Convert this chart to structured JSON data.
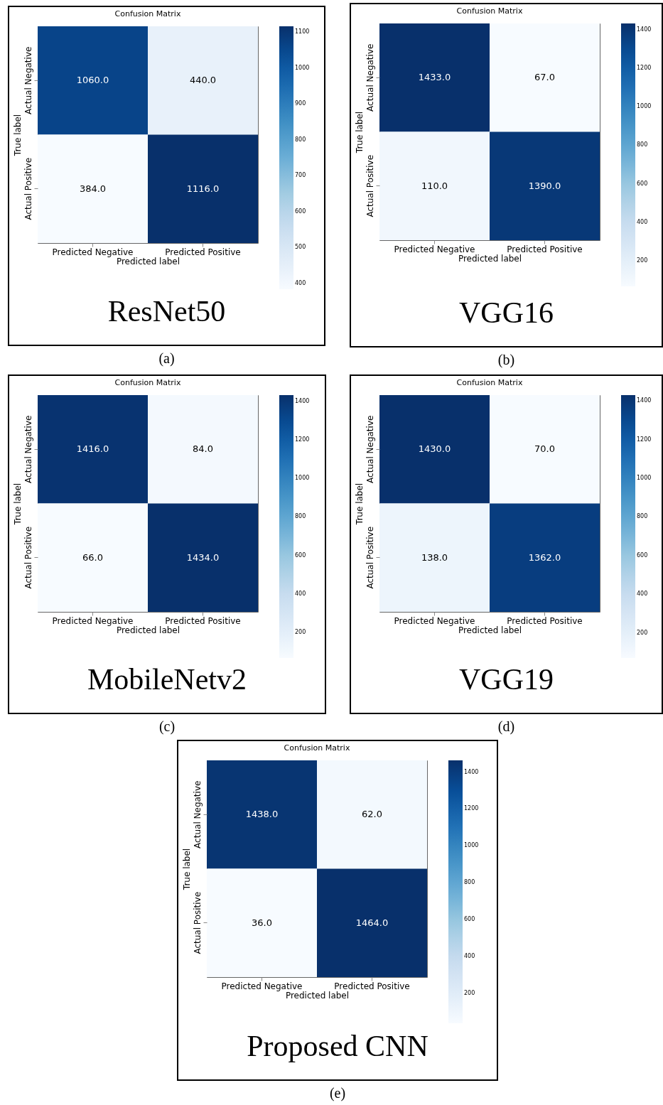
{
  "chart_data": [
    {
      "type": "heatmap",
      "title": "Confusion Matrix",
      "xlabel": "Predicted label",
      "ylabel": "True label",
      "categories": [
        "Predicted Negative",
        "Predicted Positive"
      ],
      "y_categories": [
        "Actual Negative",
        "Actual Positive"
      ],
      "cells": [
        [
          1060,
          440
        ],
        [
          384,
          1116
        ]
      ],
      "cell_labels": [
        [
          "1060.0",
          "440.0"
        ],
        [
          "384.0",
          "1116.0"
        ]
      ],
      "clim": [
        384,
        1116
      ],
      "cticks": [
        400,
        500,
        600,
        700,
        800,
        900,
        1000,
        1100
      ],
      "annotations": [
        "ResNet50",
        "(a)"
      ]
    },
    {
      "type": "heatmap",
      "title": "Confusion Matrix",
      "xlabel": "Predicted label",
      "ylabel": "True label",
      "categories": [
        "Predicted Negative",
        "Predicted Positive"
      ],
      "y_categories": [
        "Actual Negative",
        "Actual Positive"
      ],
      "cells": [
        [
          1433,
          67
        ],
        [
          110,
          1390
        ]
      ],
      "cell_labels": [
        [
          "1433.0",
          "67.0"
        ],
        [
          "110.0",
          "1390.0"
        ]
      ],
      "clim": [
        67,
        1433
      ],
      "cticks": [
        200,
        400,
        600,
        800,
        1000,
        1200,
        1400
      ],
      "annotations": [
        "VGG16",
        "(b)"
      ]
    },
    {
      "type": "heatmap",
      "title": "Confusion Matrix",
      "xlabel": "Predicted label",
      "ylabel": "True label",
      "categories": [
        "Predicted Negative",
        "Predicted Positive"
      ],
      "y_categories": [
        "Actual Negative",
        "Actual Positive"
      ],
      "cells": [
        [
          1416,
          84
        ],
        [
          66,
          1434
        ]
      ],
      "cell_labels": [
        [
          "1416.0",
          "84.0"
        ],
        [
          "66.0",
          "1434.0"
        ]
      ],
      "clim": [
        66,
        1434
      ],
      "cticks": [
        200,
        400,
        600,
        800,
        1000,
        1200,
        1400
      ],
      "annotations": [
        "MobileNetv2",
        "(c)"
      ]
    },
    {
      "type": "heatmap",
      "title": "Confusion Matrix",
      "xlabel": "Predicted label",
      "ylabel": "True label",
      "categories": [
        "Predicted Negative",
        "Predicted Positive"
      ],
      "y_categories": [
        "Actual Negative",
        "Actual Positive"
      ],
      "cells": [
        [
          1430,
          70
        ],
        [
          138,
          1362
        ]
      ],
      "cell_labels": [
        [
          "1430.0",
          "70.0"
        ],
        [
          "138.0",
          "1362.0"
        ]
      ],
      "clim": [
        70,
        1430
      ],
      "cticks": [
        200,
        400,
        600,
        800,
        1000,
        1200,
        1400
      ],
      "annotations": [
        "VGG19",
        "(d)"
      ]
    },
    {
      "type": "heatmap",
      "title": "Confusion Matrix",
      "xlabel": "Predicted label",
      "ylabel": "True label",
      "categories": [
        "Predicted Negative",
        "Predicted Positive"
      ],
      "y_categories": [
        "Actual Negative",
        "Actual Positive"
      ],
      "cells": [
        [
          1438,
          62
        ],
        [
          36,
          1464
        ]
      ],
      "cell_labels": [
        [
          "1438.0",
          "62.0"
        ],
        [
          "36.0",
          "1464.0"
        ]
      ],
      "clim": [
        36,
        1464
      ],
      "cticks": [
        200,
        400,
        600,
        800,
        1000,
        1200,
        1400
      ],
      "annotations": [
        "Proposed CNN",
        "(e)"
      ]
    }
  ]
}
